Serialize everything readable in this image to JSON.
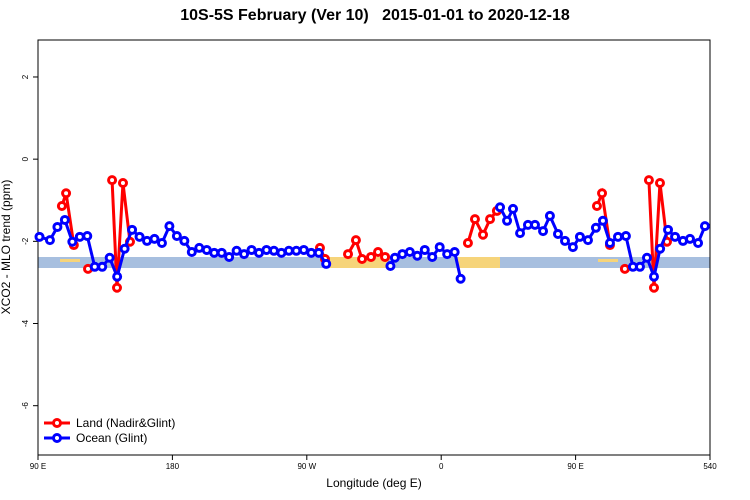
{
  "chart_data": {
    "type": "line",
    "title": "10S-5S February (Ver 10)   2015-01-01 to 2020-12-18",
    "x_label": "Longitude (deg E)",
    "y_label": "XCO2 - MLO trend (ppm)",
    "xlim": [
      90,
      540
    ],
    "ylim": [
      -7.2,
      2.9
    ],
    "xticks": [
      {
        "value": 90,
        "label": "90 E"
      },
      180,
      {
        "value": 270,
        "label": "90 W"
      },
      {
        "value": 360,
        "label": "0"
      },
      {
        "value": 450,
        "label": "90 E"
      },
      540
    ],
    "yticks": [
      2,
      0,
      -2,
      -4,
      -6
    ],
    "legend": "bottom-left",
    "series": [
      {
        "name": "Land (Nadir&Glint)",
        "color": "#ff0000",
        "x": [
          106,
          108.8,
          114,
          null,
          123.5,
          null,
          139.6,
          142.9,
          146.9,
          151.6,
          null,
          278.8,
          282.2,
          null,
          297.6,
          302.9,
          307,
          313,
          317.7,
          322.4,
          null,
          377.9,
          382.6,
          388,
          392.7,
          397.3,
          null,
          464.3,
          467.7,
          473,
          null,
          483,
          null,
          499.1,
          502.5,
          506.5,
          511.2
        ],
        "values": [
          -1.14,
          -0.83,
          -2.09,
          null,
          -2.67,
          null,
          -0.51,
          -3.13,
          -0.58,
          -2.01,
          null,
          -2.16,
          -2.43,
          null,
          -2.31,
          -1.97,
          -2.43,
          -2.38,
          -2.26,
          -2.38,
          null,
          -2.04,
          -1.46,
          -1.84,
          -1.46,
          -1.26,
          null,
          -1.14,
          -0.83,
          -2.09,
          null,
          -2.67,
          null,
          -0.51,
          -3.13,
          -0.58,
          -2.01
        ]
      },
      {
        "name": "Ocean (Glint)",
        "color": "#0000ff",
        "x": [
          91,
          98,
          103,
          108,
          113,
          118,
          123,
          128,
          133,
          138,
          143,
          148,
          153,
          158,
          163,
          168,
          173,
          178,
          183,
          188,
          193,
          198,
          203,
          208,
          213,
          218,
          223,
          228,
          233,
          238,
          243,
          248,
          253,
          258,
          263,
          268,
          273,
          278,
          283,
          null,
          326,
          329,
          334,
          339,
          344,
          349,
          354,
          359,
          364,
          369,
          373,
          null,
          399.4,
          404.1,
          408.1,
          412.8,
          418.1,
          422.8,
          428.2,
          432.8,
          438.2,
          442.9,
          448.2,
          452.9,
          458.3,
          463.6,
          468.3,
          473,
          478.4,
          483.7,
          488.4,
          493.1,
          497.8,
          502.5,
          506.6,
          511.9,
          516.6,
          521.9,
          526.6,
          532,
          536.6
        ],
        "values": [
          -1.89,
          -1.97,
          -1.65,
          -1.48,
          -2.01,
          -1.89,
          -1.87,
          -2.62,
          -2.62,
          -2.4,
          -2.86,
          -2.18,
          -1.72,
          -1.89,
          -1.99,
          -1.94,
          -2.04,
          -1.63,
          -1.87,
          -1.99,
          -2.26,
          -2.16,
          -2.21,
          -2.28,
          -2.28,
          -2.38,
          -2.23,
          -2.31,
          -2.21,
          -2.28,
          -2.21,
          -2.23,
          -2.28,
          -2.23,
          -2.23,
          -2.21,
          -2.28,
          -2.28,
          -2.55,
          null,
          -2.6,
          -2.4,
          -2.31,
          -2.26,
          -2.35,
          -2.21,
          -2.38,
          -2.14,
          -2.31,
          -2.26,
          -2.91,
          null,
          -1.17,
          -1.5,
          -1.21,
          -1.8,
          -1.6,
          -1.6,
          -1.75,
          -1.38,
          -1.82,
          -1.99,
          -2.14,
          -1.89,
          -1.97,
          -1.67,
          -1.5,
          -2.04,
          -1.89,
          -1.87,
          -2.62,
          -2.62,
          -2.4,
          -2.86,
          -2.18,
          -1.72,
          -1.89,
          -1.99,
          -1.94,
          -2.04,
          -1.63
        ]
      }
    ]
  }
}
